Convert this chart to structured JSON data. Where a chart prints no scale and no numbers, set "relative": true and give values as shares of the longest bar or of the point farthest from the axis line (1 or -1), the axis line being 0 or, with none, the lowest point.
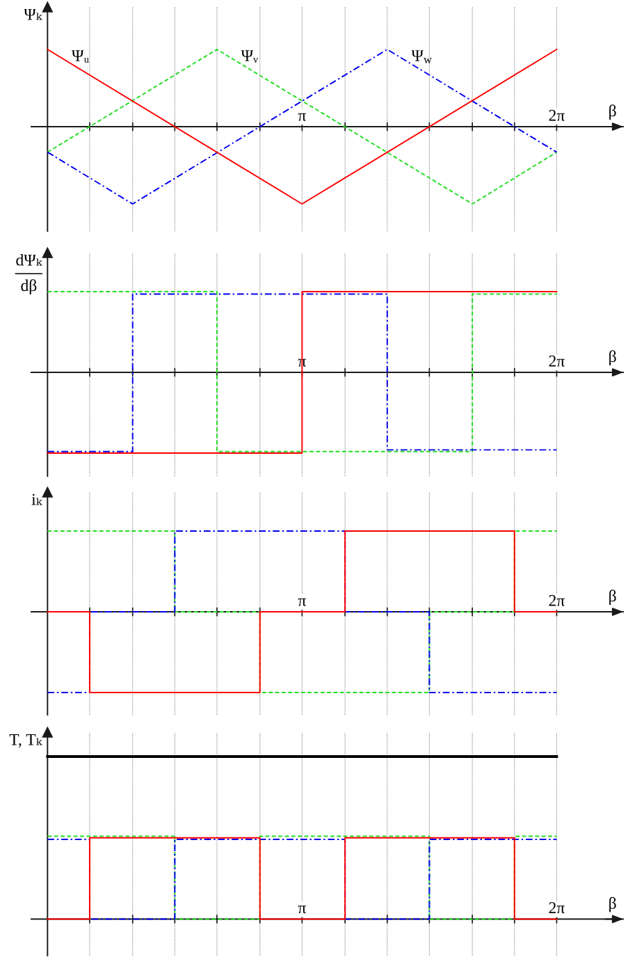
{
  "chart_data": [
    {
      "type": "line",
      "relative": true,
      "ylabel": "Ψₖ",
      "xlabel": "β",
      "xlim": [
        -0.2,
        7.1
      ],
      "xticks": [
        {
          "value": 0.52,
          "label": null
        },
        {
          "value": 1.05,
          "label": null
        },
        {
          "value": 1.57,
          "label": null
        },
        {
          "value": 2.09,
          "label": null
        },
        {
          "value": 2.62,
          "label": null
        },
        {
          "value": 3.14,
          "label": "π"
        },
        {
          "value": 3.67,
          "label": null
        },
        {
          "value": 4.19,
          "label": null
        },
        {
          "value": 4.71,
          "label": null
        },
        {
          "value": 5.24,
          "label": null
        },
        {
          "value": 5.76,
          "label": null
        },
        {
          "value": 6.28,
          "label": "2π"
        }
      ],
      "grid": "x",
      "series": [
        {
          "name": "Ψᵥ",
          "color": "#22dd22",
          "line_style": "dashed",
          "x": [
            0,
            2.09,
            5.24,
            6.28
          ],
          "values": [
            -0.33,
            1,
            -1,
            -0.33
          ]
        },
        {
          "name": "Ψ$_{w}$",
          "color": "#0000ee",
          "line_style": "dashdot",
          "x": [
            0,
            1.05,
            4.19,
            6.28
          ],
          "values": [
            -0.33,
            -1,
            1,
            -0.33
          ]
        },
        {
          "name": "Ψᵤ",
          "color": "#ff0000",
          "line_style": "solid",
          "x": [
            0,
            3.14,
            6.28
          ],
          "values": [
            1,
            -1,
            1
          ]
        }
      ]
    },
    {
      "type": "step",
      "relative": true,
      "ylabel": "dΨₖ\ndβ",
      "xlabel": "β",
      "xlim": [
        -0.2,
        7.1
      ],
      "xticks": [
        {
          "value": 0.52,
          "label": null
        },
        {
          "value": 1.05,
          "label": null
        },
        {
          "value": 1.57,
          "label": null
        },
        {
          "value": 2.09,
          "label": null
        },
        {
          "value": 2.62,
          "label": null
        },
        {
          "value": 3.14,
          "label": "π"
        },
        {
          "value": 3.67,
          "label": null
        },
        {
          "value": 4.19,
          "label": null
        },
        {
          "value": 4.71,
          "label": null
        },
        {
          "value": 5.24,
          "label": null
        },
        {
          "value": 5.76,
          "label": null
        },
        {
          "value": 6.28,
          "label": "2π"
        }
      ],
      "grid": "x",
      "series": [
        {
          "color": "#22dd22",
          "line_style": "dashed",
          "x": [
            0,
            2.09,
            5.24,
            6.28
          ],
          "values": [
            1,
            -0.98,
            0.97,
            0.97
          ]
        },
        {
          "color": "#0000ee",
          "line_style": "dashdot",
          "x": [
            0,
            1.05,
            4.19,
            6.28
          ],
          "values": [
            -0.98,
            0.97,
            -0.96,
            -0.96
          ]
        },
        {
          "color": "#ff0000",
          "line_style": "solid",
          "x": [
            0,
            3.14,
            6.28
          ],
          "values": [
            -1,
            1,
            1
          ]
        }
      ]
    },
    {
      "type": "step",
      "relative": true,
      "ylabel": "iₖ",
      "xlabel": "β",
      "xlim": [
        -0.2,
        7.1
      ],
      "xticks": [
        {
          "value": 0.52,
          "label": null
        },
        {
          "value": 1.05,
          "label": null
        },
        {
          "value": 1.57,
          "label": null
        },
        {
          "value": 2.09,
          "label": null
        },
        {
          "value": 2.62,
          "label": null
        },
        {
          "value": 3.14,
          "label": "π"
        },
        {
          "value": 3.67,
          "label": null
        },
        {
          "value": 4.19,
          "label": null
        },
        {
          "value": 4.71,
          "label": null
        },
        {
          "value": 5.24,
          "label": null
        },
        {
          "value": 5.76,
          "label": null
        },
        {
          "value": 6.28,
          "label": "2π"
        }
      ],
      "grid": "x",
      "series": [
        {
          "color": "#22dd22",
          "line_style": "dashed",
          "x": [
            0,
            1.57,
            2.62,
            4.71,
            5.76,
            6.28
          ],
          "values": [
            1,
            0,
            -1,
            0,
            1,
            1
          ]
        },
        {
          "color": "#0000ee",
          "line_style": "dashdot",
          "x": [
            0,
            0.52,
            1.57,
            3.67,
            4.71,
            6.28
          ],
          "values": [
            -1,
            0,
            1,
            0,
            -1,
            -1
          ]
        },
        {
          "color": "#ff0000",
          "line_style": "solid",
          "x": [
            0,
            0.52,
            2.62,
            3.67,
            5.76,
            6.28
          ],
          "values": [
            0,
            -1,
            0,
            1,
            0,
            0
          ]
        }
      ]
    },
    {
      "type": "step",
      "relative": true,
      "ylabel": "T, Tₖ",
      "xlabel": "β",
      "xlim": [
        -0.2,
        7.1
      ],
      "xticks": [
        {
          "value": 0.52,
          "label": null
        },
        {
          "value": 1.05,
          "label": null
        },
        {
          "value": 1.57,
          "label": null
        },
        {
          "value": 2.09,
          "label": null
        },
        {
          "value": 2.62,
          "label": null
        },
        {
          "value": 3.14,
          "label": "π"
        },
        {
          "value": 3.67,
          "label": null
        },
        {
          "value": 4.19,
          "label": null
        },
        {
          "value": 4.71,
          "label": null
        },
        {
          "value": 5.24,
          "label": null
        },
        {
          "value": 5.76,
          "label": null
        },
        {
          "value": 6.28,
          "label": "2π"
        }
      ],
      "grid": "x",
      "series": [
        {
          "type": "line",
          "color": "#000000",
          "line_style": "solid",
          "x": [
            0,
            6.28
          ],
          "values": [
            1,
            1
          ]
        },
        {
          "color": "#22dd22",
          "line_style": "dashed",
          "x": [
            0,
            1.57,
            2.62,
            4.71,
            5.76,
            6.28
          ],
          "values": [
            0.51,
            0,
            0.51,
            0,
            0.51,
            0.51
          ]
        },
        {
          "color": "#0000ee",
          "line_style": "dashdot",
          "x": [
            0,
            0.52,
            1.57,
            3.67,
            4.71,
            6.28
          ],
          "values": [
            0.49,
            0,
            0.49,
            0,
            0.49,
            0.49
          ]
        },
        {
          "color": "#ff0000",
          "line_style": "solid",
          "x": [
            0,
            0.52,
            2.62,
            3.67,
            5.76,
            6.28
          ],
          "values": [
            0,
            0.5,
            0,
            0.5,
            0,
            0
          ]
        }
      ]
    }
  ]
}
